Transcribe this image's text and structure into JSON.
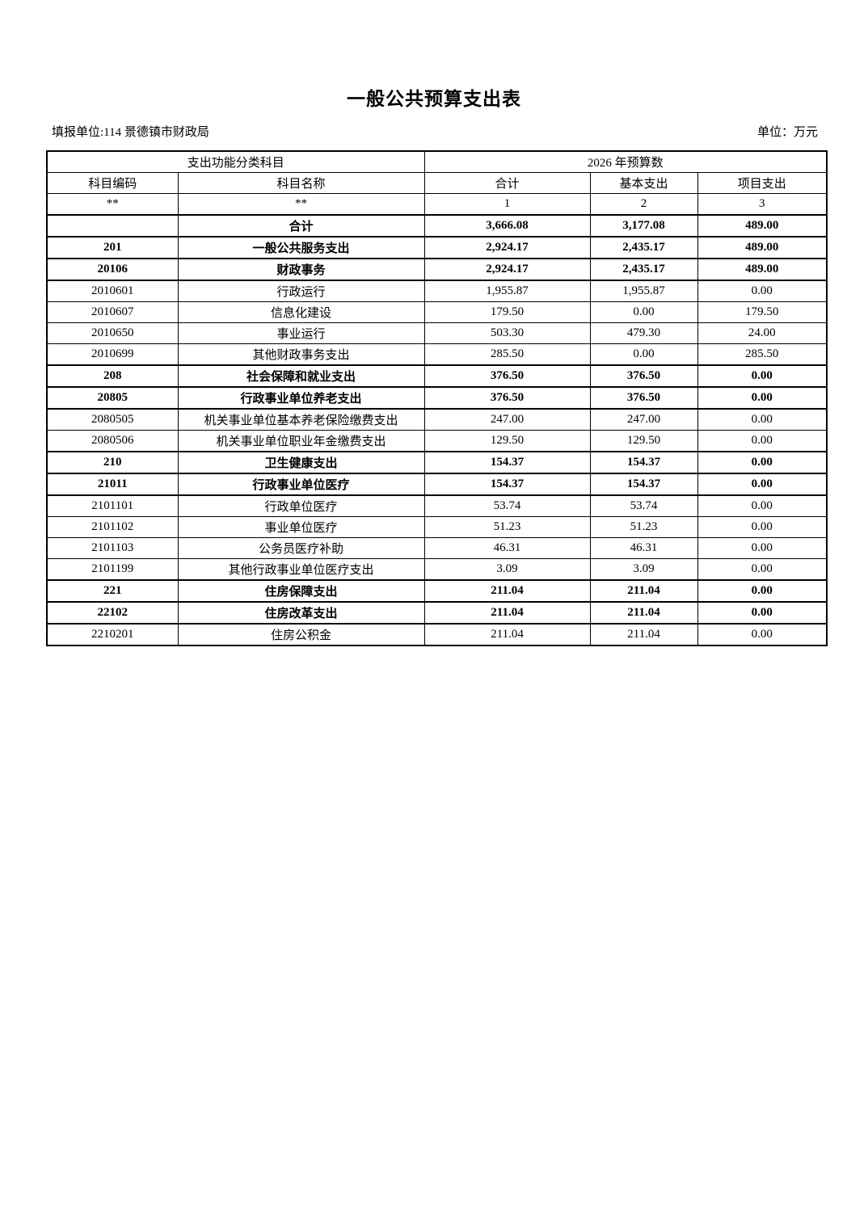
{
  "page": {
    "title": "一般公共预算支出表",
    "report_unit_label": "填报单位:114 景德镇市财政局",
    "unit_label": "单位：万元"
  },
  "table": {
    "header": {
      "group_left": "支出功能分类科目",
      "group_right": "2026 年预算数",
      "columns": [
        "科目编码",
        "科目名称",
        "合计",
        "基本支出",
        "项目支出"
      ],
      "index_row": [
        "**",
        "**",
        "1",
        "2",
        "3"
      ]
    },
    "rows": [
      {
        "code": "",
        "name": "合计",
        "total": "3,666.08",
        "basic": "3,177.08",
        "project": "489.00",
        "bold": true
      },
      {
        "code": "201",
        "name": "一般公共服务支出",
        "total": "2,924.17",
        "basic": "2,435.17",
        "project": "489.00",
        "bold": true
      },
      {
        "code": "20106",
        "name": "财政事务",
        "total": "2,924.17",
        "basic": "2,435.17",
        "project": "489.00",
        "bold": true
      },
      {
        "code": "2010601",
        "name": "行政运行",
        "total": "1,955.87",
        "basic": "1,955.87",
        "project": "0.00",
        "bold": false
      },
      {
        "code": "2010607",
        "name": "信息化建设",
        "total": "179.50",
        "basic": "0.00",
        "project": "179.50",
        "bold": false
      },
      {
        "code": "2010650",
        "name": "事业运行",
        "total": "503.30",
        "basic": "479.30",
        "project": "24.00",
        "bold": false
      },
      {
        "code": "2010699",
        "name": "其他财政事务支出",
        "total": "285.50",
        "basic": "0.00",
        "project": "285.50",
        "bold": false
      },
      {
        "code": "208",
        "name": "社会保障和就业支出",
        "total": "376.50",
        "basic": "376.50",
        "project": "0.00",
        "bold": true
      },
      {
        "code": "20805",
        "name": "行政事业单位养老支出",
        "total": "376.50",
        "basic": "376.50",
        "project": "0.00",
        "bold": true
      },
      {
        "code": "2080505",
        "name": "机关事业单位基本养老保险缴费支出",
        "total": "247.00",
        "basic": "247.00",
        "project": "0.00",
        "bold": false
      },
      {
        "code": "2080506",
        "name": "机关事业单位职业年金缴费支出",
        "total": "129.50",
        "basic": "129.50",
        "project": "0.00",
        "bold": false
      },
      {
        "code": "210",
        "name": "卫生健康支出",
        "total": "154.37",
        "basic": "154.37",
        "project": "0.00",
        "bold": true
      },
      {
        "code": "21011",
        "name": "行政事业单位医疗",
        "total": "154.37",
        "basic": "154.37",
        "project": "0.00",
        "bold": true
      },
      {
        "code": "2101101",
        "name": "行政单位医疗",
        "total": "53.74",
        "basic": "53.74",
        "project": "0.00",
        "bold": false
      },
      {
        "code": "2101102",
        "name": "事业单位医疗",
        "total": "51.23",
        "basic": "51.23",
        "project": "0.00",
        "bold": false
      },
      {
        "code": "2101103",
        "name": "公务员医疗补助",
        "total": "46.31",
        "basic": "46.31",
        "project": "0.00",
        "bold": false
      },
      {
        "code": "2101199",
        "name": "其他行政事业单位医疗支出",
        "total": "3.09",
        "basic": "3.09",
        "project": "0.00",
        "bold": false
      },
      {
        "code": "221",
        "name": "住房保障支出",
        "total": "211.04",
        "basic": "211.04",
        "project": "0.00",
        "bold": true
      },
      {
        "code": "22102",
        "name": "住房改革支出",
        "total": "211.04",
        "basic": "211.04",
        "project": "0.00",
        "bold": true
      },
      {
        "code": "2210201",
        "name": "住房公积金",
        "total": "211.04",
        "basic": "211.04",
        "project": "0.00",
        "bold": false
      }
    ]
  }
}
